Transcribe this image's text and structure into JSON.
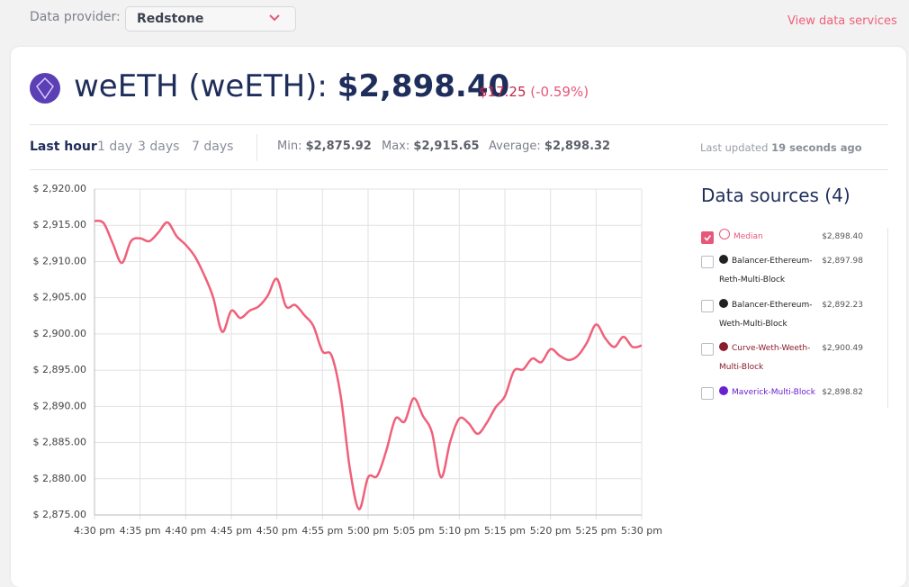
{
  "provider": {
    "label": "Data provider:",
    "value": "Redstone"
  },
  "link": "View data services",
  "header": {
    "title": "weETH (weETH):",
    "price": "$2,898.40",
    "change": "$17.25",
    "change_pct": "(-0.59%)"
  },
  "tabs": [
    "Last hour",
    "1 day",
    "3 days",
    "7 days"
  ],
  "stats": [
    {
      "label": "Min:",
      "value": "$2,875.92"
    },
    {
      "label": "Max:",
      "value": "$2,915.65"
    },
    {
      "label": "Average:",
      "value": "$2,898.32"
    }
  ],
  "updated": {
    "label": "Last updated",
    "value": "19 seconds ago"
  },
  "sources": {
    "title": "Data sources (4)",
    "items": [
      {
        "name": "Median",
        "price": "$2,898.40",
        "color": "#e8577a"
      },
      {
        "name": "Balancer-Ethereum-Reth-Multi-Block",
        "price": "$2,897.98",
        "color": "#222222"
      },
      {
        "name": "Balancer-Ethereum-Weth-Multi-Block",
        "price": "$2,892.23",
        "color": "#222222"
      },
      {
        "name": "Curve-Weth-Weeth-Multi-Block",
        "price": "$2,900.49",
        "color": "#8a1c2b"
      },
      {
        "name": "Maverick-Multi-Block",
        "price": "$2,898.82",
        "color": "#6a1fd0"
      }
    ]
  },
  "chart_data": {
    "type": "line",
    "x": [
      "4:30 pm",
      "4:31 pm",
      "4:32 pm",
      "4:33 pm",
      "4:34 pm",
      "4:35 pm",
      "4:36 pm",
      "4:37 pm",
      "4:38 pm",
      "4:39 pm",
      "4:40 pm",
      "4:41 pm",
      "4:42 pm",
      "4:43 pm",
      "4:44 pm",
      "4:45 pm",
      "4:46 pm",
      "4:47 pm",
      "4:48 pm",
      "4:49 pm",
      "4:50 pm",
      "4:51 pm",
      "4:52 pm",
      "4:53 pm",
      "4:54 pm",
      "4:55 pm",
      "4:56 pm",
      "4:57 pm",
      "4:58 pm",
      "4:59 pm",
      "5:00 pm",
      "5:01 pm",
      "5:02 pm",
      "5:03 pm",
      "5:04 pm",
      "5:05 pm",
      "5:06 pm",
      "5:07 pm",
      "5:08 pm",
      "5:09 pm",
      "5:10 pm",
      "5:11 pm",
      "5:12 pm",
      "5:13 pm",
      "5:14 pm",
      "5:15 pm",
      "5:16 pm",
      "5:17 pm",
      "5:18 pm",
      "5:19 pm",
      "5:20 pm",
      "5:21 pm",
      "5:22 pm",
      "5:23 pm",
      "5:24 pm",
      "5:25 pm",
      "5:26 pm",
      "5:27 pm",
      "5:28 pm",
      "5:29 pm",
      "5:30 pm"
    ],
    "values": [
      2915.6,
      2915.3,
      2912.5,
      2909.8,
      2912.8,
      2913.2,
      2912.8,
      2914.0,
      2915.4,
      2913.5,
      2912.3,
      2910.7,
      2908.2,
      2905.1,
      2900.3,
      2903.2,
      2902.2,
      2903.2,
      2903.8,
      2905.3,
      2907.6,
      2903.8,
      2904.0,
      2902.6,
      2901.1,
      2897.6,
      2897.0,
      2891.4,
      2881.4,
      2875.8,
      2880.2,
      2880.4,
      2883.9,
      2888.3,
      2887.9,
      2891.1,
      2888.7,
      2886.4,
      2880.2,
      2885.1,
      2888.3,
      2887.7,
      2886.2,
      2887.7,
      2889.9,
      2891.4,
      2894.9,
      2895.1,
      2896.6,
      2896.1,
      2897.9,
      2897.0,
      2896.4,
      2897.0,
      2898.8,
      2901.3,
      2899.4,
      2898.2,
      2899.6,
      2898.2,
      2898.4
    ],
    "color": "#f0607a",
    "xticks": [
      "4:30 pm",
      "4:35 pm",
      "4:40 pm",
      "4:45 pm",
      "4:50 pm",
      "4:55 pm",
      "5:00 pm",
      "5:05 pm",
      "5:10 pm",
      "5:15 pm",
      "5:20 pm",
      "5:25 pm",
      "5:30 pm"
    ],
    "ylim": [
      2875,
      2920
    ],
    "yticks": [
      {
        "value": 2875,
        "label": "$ 2,875.00"
      },
      {
        "value": 2880,
        "label": "$ 2,880.00"
      },
      {
        "value": 2885,
        "label": "$ 2,885.00"
      },
      {
        "value": 2890,
        "label": "$ 2,890.00"
      },
      {
        "value": 2895,
        "label": "$ 2,895.00"
      },
      {
        "value": 2900,
        "label": "$ 2,900.00"
      },
      {
        "value": 2905,
        "label": "$ 2,905.00"
      },
      {
        "value": 2910,
        "label": "$ 2,910.00"
      },
      {
        "value": 2915,
        "label": "$ 2,915.00"
      },
      {
        "value": 2920,
        "label": "$ 2,920.00"
      }
    ],
    "grid": true
  }
}
